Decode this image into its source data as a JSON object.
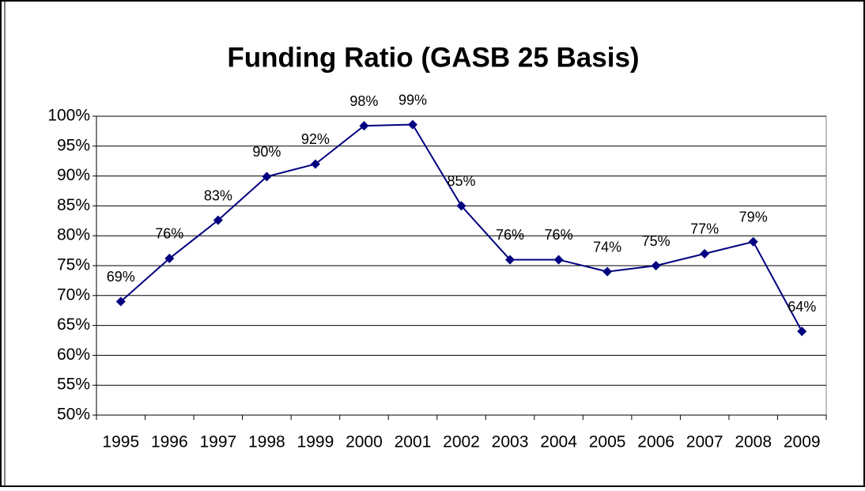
{
  "chart_data": {
    "type": "line",
    "title": "Funding Ratio (GASB 25 Basis)",
    "categories": [
      "1995",
      "1996",
      "1997",
      "1998",
      "1999",
      "2000",
      "2001",
      "2002",
      "2003",
      "2004",
      "2005",
      "2006",
      "2007",
      "2008",
      "2009"
    ],
    "values": [
      69,
      76.2,
      82.6,
      89.9,
      92,
      98.4,
      98.6,
      85,
      76,
      76,
      74,
      75,
      77,
      79,
      64
    ],
    "value_labels": [
      "69%",
      "76%",
      "83%",
      "90%",
      "92%",
      "98%",
      "99%",
      "85%",
      "76%",
      "76%",
      "74%",
      "75%",
      "77%",
      "79%",
      "64%"
    ],
    "color": "#000080",
    "ylim": [
      50,
      100
    ],
    "yticks": [
      {
        "value": 50,
        "label": "50%"
      },
      {
        "value": 55,
        "label": "55%"
      },
      {
        "value": 60,
        "label": "60%"
      },
      {
        "value": 65,
        "label": "65%"
      },
      {
        "value": 70,
        "label": "70%"
      },
      {
        "value": 75,
        "label": "75%"
      },
      {
        "value": 80,
        "label": "80%"
      },
      {
        "value": 85,
        "label": "85%"
      },
      {
        "value": 90,
        "label": "90%"
      },
      {
        "value": 95,
        "label": "95%"
      },
      {
        "value": 100,
        "label": "100%"
      }
    ],
    "grid": true
  }
}
